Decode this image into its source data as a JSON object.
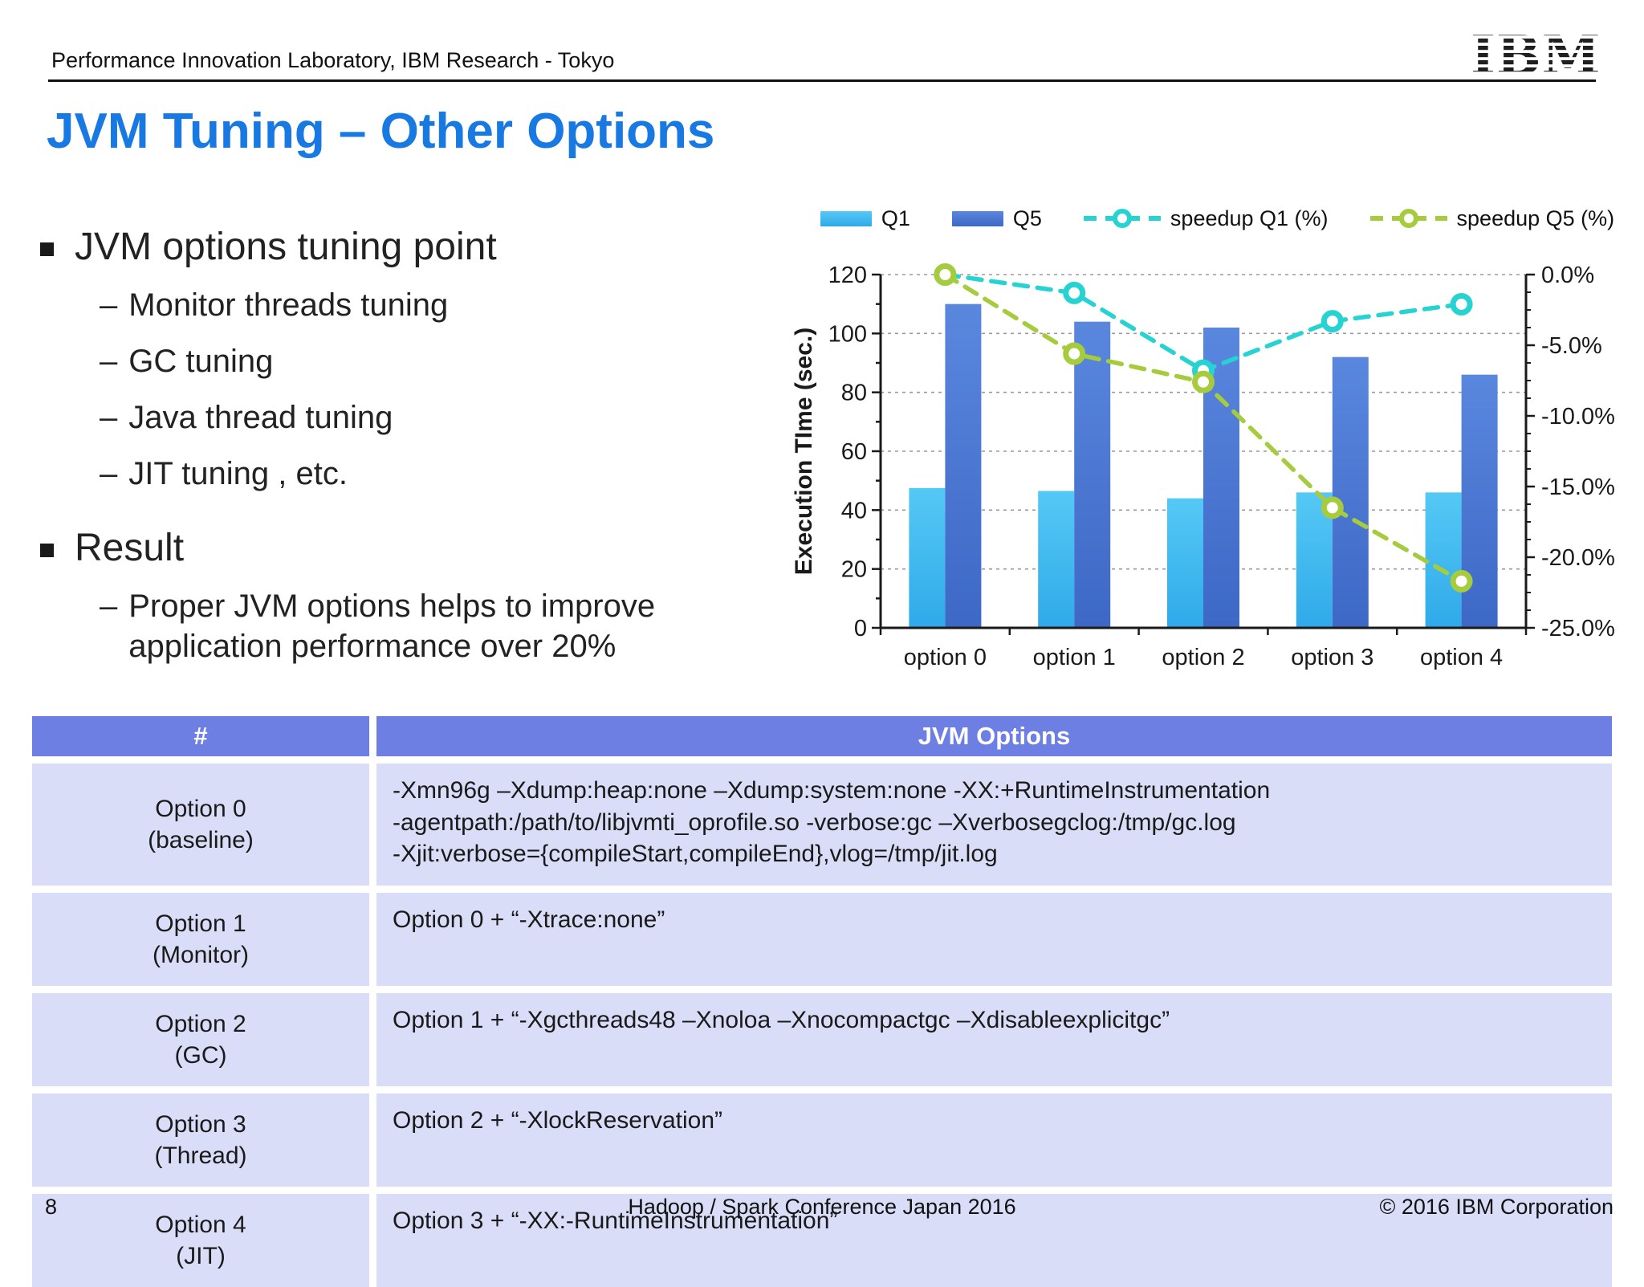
{
  "header": {
    "lab": "Performance Innovation Laboratory, IBM Research - Tokyo",
    "logo": "IBM"
  },
  "title": "JVM Tuning – Other Options",
  "bullets": [
    {
      "label": "JVM options tuning point",
      "subs": [
        "Monitor threads tuning",
        "GC tuning",
        "Java thread tuning",
        "JIT tuning , etc."
      ]
    },
    {
      "label": "Result",
      "subs": [
        "Proper JVM options helps to improve application performance over 20%"
      ]
    }
  ],
  "chart_data": {
    "type": "bar",
    "categories": [
      "option 0",
      "option 1",
      "option 2",
      "option 3",
      "option 4"
    ],
    "series": [
      {
        "name": "Q1",
        "type": "bar",
        "axis": "left",
        "values": [
          47.5,
          46.5,
          44,
          46,
          46
        ]
      },
      {
        "name": "Q5",
        "type": "bar",
        "axis": "left",
        "values": [
          110,
          104,
          102,
          92,
          86
        ]
      },
      {
        "name": "speedup Q1 (%)",
        "type": "line",
        "axis": "right",
        "values": [
          0.0,
          -1.3,
          -6.8,
          -3.3,
          -2.1
        ]
      },
      {
        "name": "speedup Q5 (%)",
        "type": "line",
        "axis": "right",
        "values": [
          0.0,
          -5.6,
          -7.6,
          -16.5,
          -21.7
        ]
      }
    ],
    "ylabel_left": "Execution TIme (sec.)",
    "left_axis": {
      "min": 0,
      "max": 120,
      "step": 20
    },
    "right_axis": {
      "min": -25,
      "max": 0,
      "step": 5,
      "tick_labels": [
        "0.0%",
        "-5.0%",
        "-10.0%",
        "-15.0%",
        "-20.0%",
        "-25.0%"
      ]
    },
    "grid": "dashed horizontal gridlines at left-axis ticks",
    "legend_position": "top",
    "colors": {
      "q1_top": "#55c9f5",
      "q1_bottom": "#2fa9e9",
      "q5_top": "#5a87de",
      "q5_bottom": "#3d68c6",
      "speedup_q1": "#27d2d2",
      "speedup_q5": "#a6cb3d",
      "axis": "#1a1a1a",
      "grid": "#9a9a9a"
    }
  },
  "table": {
    "headers": [
      "#",
      "JVM Options"
    ],
    "rows": [
      {
        "option": "Option 0",
        "tag": "(baseline)",
        "value": "-Xmn96g –Xdump:heap:none –Xdump:system:none -XX:+RuntimeInstrumentation\n-agentpath:/path/to/libjvmti_oprofile.so -verbose:gc –Xverbosegclog:/tmp/gc.log\n-Xjit:verbose={compileStart,compileEnd},vlog=/tmp/jit.log"
      },
      {
        "option": "Option 1",
        "tag": "(Monitor)",
        "value": "Option 0 + “-Xtrace:none”"
      },
      {
        "option": "Option 2",
        "tag": "(GC)",
        "value": "Option 1 + “-Xgcthreads48 –Xnoloa –Xnocompactgc –Xdisableexplicitgc”"
      },
      {
        "option": "Option 3",
        "tag": "(Thread)",
        "value": "Option 2 + “-XlockReservation”"
      },
      {
        "option": "Option 4",
        "tag": "(JIT)",
        "value": "Option 3 + “-XX:-RuntimeInstrumentation”"
      }
    ]
  },
  "footer": {
    "page": "8",
    "center": "Hadoop / Spark Conference Japan 2016",
    "right": "© 2016 IBM Corporation"
  }
}
